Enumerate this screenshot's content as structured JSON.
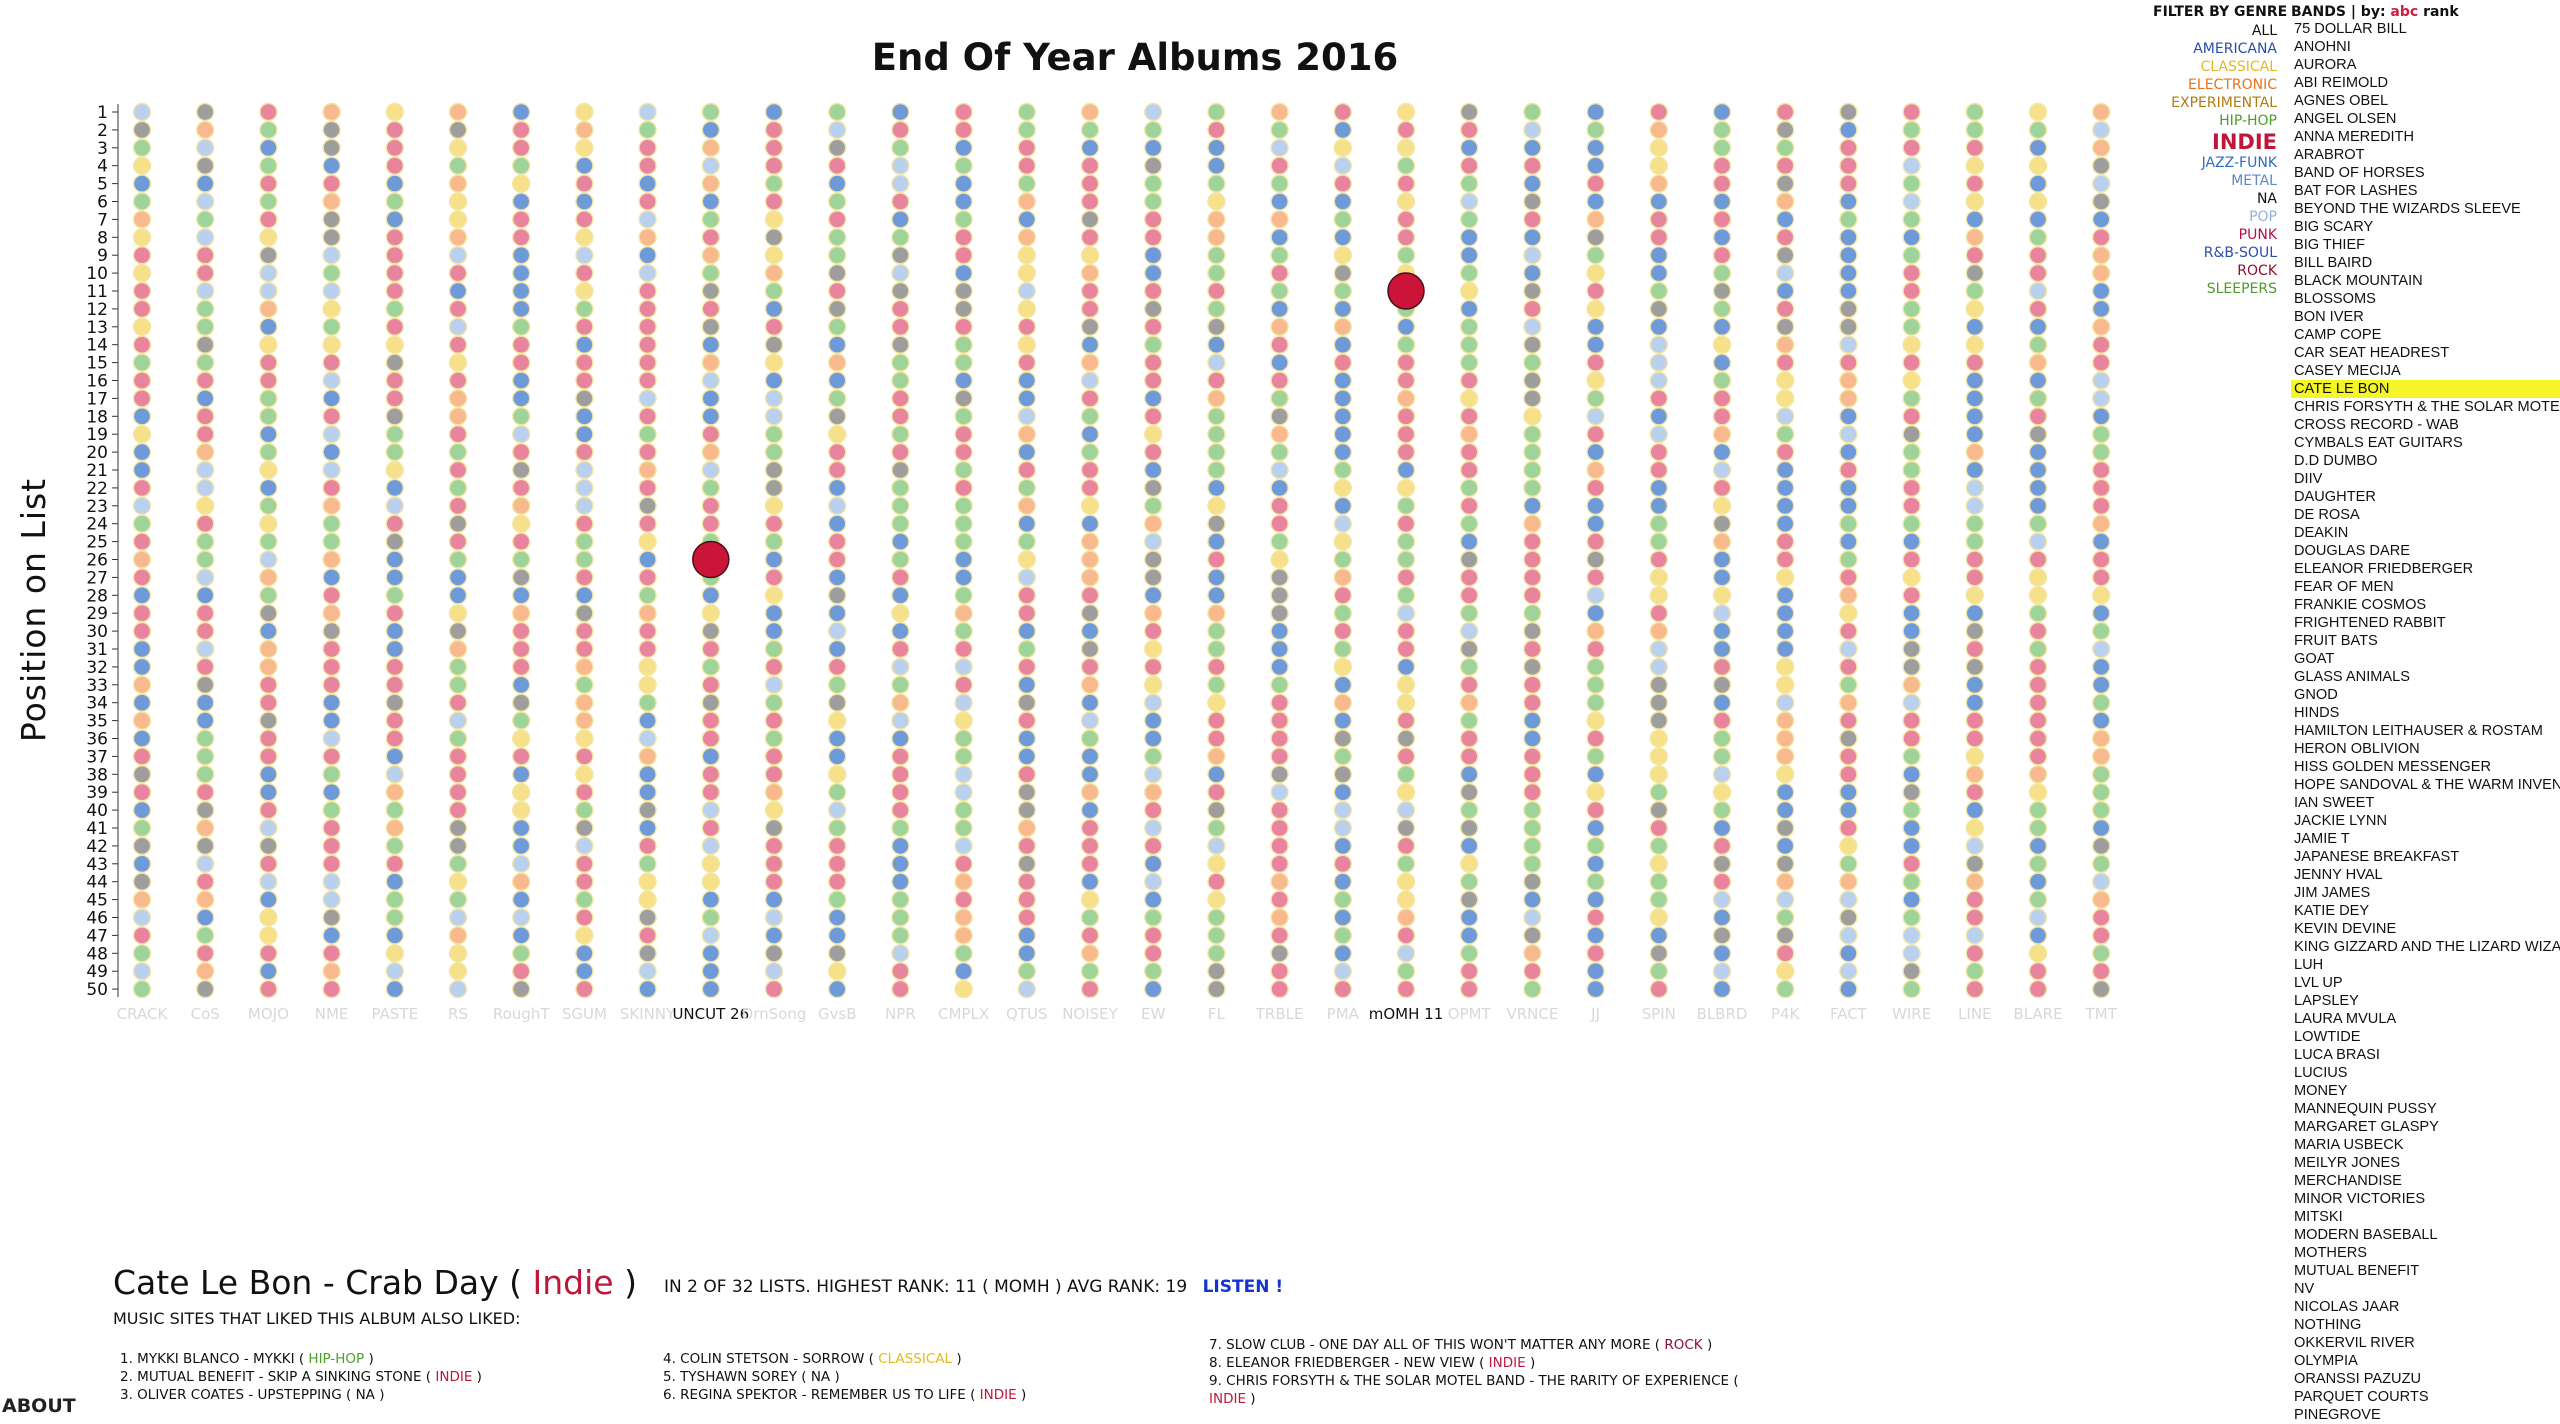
{
  "title": "End Of Year Albums 2016",
  "y_axis_label": "Position on List",
  "colors": {
    "indie": "#e8849e",
    "rock": "#9e9e9e",
    "hip_hop": "#9ed49a",
    "pop": "#b9d0ee",
    "electronic": "#f8b98e",
    "rnb": "#6f9ad9",
    "classical": "#f6e08a",
    "highlight": "#cc1438"
  },
  "publications": [
    "CRACK",
    "CoS",
    "MOJO",
    "NME",
    "PASTE",
    "RS",
    "RoughT",
    "SGUM",
    "SKINNY",
    "UNCUT",
    "DrnSong",
    "GvsB",
    "NPR",
    "CMPLX",
    "QTUS",
    "NOISEY",
    "EW",
    "FL",
    "TRBLE",
    "PMA",
    "MOMH",
    "OPMT",
    "VRNCE",
    "JJ",
    "SPIN",
    "BLBRD",
    "P4K",
    "FACT",
    "WIRE",
    "LINE",
    "BLARE",
    "TMT"
  ],
  "highlighted_labels": [
    "UNCUT 26",
    "mOMH 11"
  ],
  "positions": [
    "1",
    "2",
    "3",
    "4",
    "5",
    "6",
    "7",
    "8",
    "9",
    "10",
    "11",
    "12",
    "13",
    "14",
    "15",
    "16",
    "17",
    "18",
    "19",
    "20",
    "21",
    "22",
    "23",
    "24",
    "25",
    "26",
    "27",
    "28",
    "29",
    "30",
    "31",
    "32",
    "33",
    "34",
    "35",
    "36",
    "37",
    "38",
    "39",
    "40",
    "41",
    "42",
    "43",
    "44",
    "45",
    "46",
    "47",
    "48",
    "49",
    "50"
  ],
  "selected_album_ranks": [
    {
      "publication": "UNCUT",
      "rank": 26
    },
    {
      "publication": "MOMH",
      "rank": 11
    }
  ],
  "filter": {
    "heading": "FILTER BY GENRE",
    "genres": [
      {
        "label": "ALL",
        "color": "#111111",
        "active": false
      },
      {
        "label": "AMERICANA",
        "color": "#2a4fa8",
        "active": false
      },
      {
        "label": "CLASSICAL",
        "color": "#e6b91e",
        "active": false
      },
      {
        "label": "ELECTRONIC",
        "color": "#e8731e",
        "active": false
      },
      {
        "label": "EXPERIMENTAL",
        "color": "#b07c12",
        "active": false
      },
      {
        "label": "HIP-HOP",
        "color": "#4e9c2a",
        "active": false
      },
      {
        "label": "INDIE",
        "color": "#c0163a",
        "active": true
      },
      {
        "label": "JAZZ-FUNK",
        "color": "#2f6cc0",
        "active": false
      },
      {
        "label": "METAL",
        "color": "#5f87c9",
        "active": false
      },
      {
        "label": "NA",
        "color": "#111111",
        "active": false
      },
      {
        "label": "POP",
        "color": "#8fb0de",
        "active": false
      },
      {
        "label": "PUNK",
        "color": "#b51045",
        "active": false
      },
      {
        "label": "R&B-SOUL",
        "color": "#2a4fa8",
        "active": false
      },
      {
        "label": "ROCK",
        "color": "#8e1030",
        "active": false
      },
      {
        "label": "SLEEPERS",
        "color": "#4e9c2a",
        "active": false
      }
    ]
  },
  "bands_heading": {
    "label": "BANDS",
    "by": "| by:",
    "abc": "abc",
    "rank": "rank"
  },
  "bands": [
    "75 DOLLAR BILL",
    "ANOHNI",
    "AURORA",
    "ABI REIMOLD",
    "AGNES OBEL",
    "ANGEL OLSEN",
    "ANNA MEREDITH",
    "ARABROT",
    "BAND OF HORSES",
    "BAT FOR LASHES",
    "BEYOND THE WIZARDS SLEEVE",
    "BIG SCARY",
    "BIG THIEF",
    "BILL BAIRD",
    "BLACK MOUNTAIN",
    "BLOSSOMS",
    "BON IVER",
    "CAMP COPE",
    "CAR SEAT HEADREST",
    "CASEY MECIJA",
    "CATE LE BON",
    "CHRIS FORSYTH & THE SOLAR MOTEL BAND",
    "CROSS RECORD - WAB",
    "CYMBALS EAT GUITARS",
    "D.D DUMBO",
    "DIIV",
    "DAUGHTER",
    "DE ROSA",
    "DEAKIN",
    "DOUGLAS DARE",
    "ELEANOR FRIEDBERGER",
    "FEAR OF MEN",
    "FRANKIE COSMOS",
    "FRIGHTENED RABBIT",
    "FRUIT BATS",
    "GOAT",
    "GLASS ANIMALS",
    "GNOD",
    "HINDS",
    "HAMILTON LEITHAUSER & ROSTAM",
    "HERON OBLIVION",
    "HISS GOLDEN MESSENGER",
    "HOPE SANDOVAL & THE WARM INVENTIONS",
    "IAN SWEET",
    "JACKIE LYNN",
    "JAMIE T",
    "JAPANESE BREAKFAST",
    "JENNY HVAL",
    "JIM JAMES",
    "KATIE DEY",
    "KEVIN DEVINE",
    "KING GIZZARD AND THE LIZARD WIZARD",
    "LUH",
    "LVL UP",
    "LAPSLEY",
    "LAURA MVULA",
    "LOWTIDE",
    "LUCA BRASI",
    "LUCIUS",
    "MONEY",
    "MANNEQUIN PUSSY",
    "MARGARET GLASPY",
    "MARIA USBECK",
    "MEILYR JONES",
    "MERCHANDISE",
    "MINOR VICTORIES",
    "MITSKI",
    "MODERN BASEBALL",
    "MOTHERS",
    "MUTUAL BENEFIT",
    "NV",
    "NICOLAS JAAR",
    "NOTHING",
    "OKKERVIL RIVER",
    "OLYMPIA",
    "ORANSSI PAZUZU",
    "PARQUET COURTS",
    "PINEGROVE"
  ],
  "selected_band": "CATE LE BON",
  "album": {
    "artist_title": "Cate Le Bon - Crab Day",
    "open_paren": " ( ",
    "genre": "Indie",
    "close_paren": " )",
    "stats": "IN 2 OF 32 LISTS.  HIGHEST RANK: 11 ( MOMH )  AVG RANK: 19",
    "listen": "LISTEN !",
    "also_liked": "MUSIC SITES THAT LIKED THIS ALBUM ALSO LIKED:"
  },
  "recommendations": [
    {
      "text": "1. MYKKI BLANCO - MYKKI ( ",
      "genre": "HIP-HOP",
      "color": "#4e9c2a",
      "after": " )"
    },
    {
      "text": "2. MUTUAL BENEFIT - SKIP A SINKING STONE ( ",
      "genre": "INDIE",
      "color": "#c0163a",
      "after": " )"
    },
    {
      "text": "3. OLIVER COATES - UPSTEPPING ( NA )",
      "genre": "",
      "color": "#111111",
      "after": ""
    },
    {
      "text": "4. COLIN STETSON - SORROW ( ",
      "genre": "CLASSICAL",
      "color": "#e6b91e",
      "after": " )"
    },
    {
      "text": "5. TYSHAWN SOREY ( NA )",
      "genre": "",
      "color": "#111111",
      "after": ""
    },
    {
      "text": "6. REGINA SPEKTOR - REMEMBER US TO LIFE ( ",
      "genre": "INDIE",
      "color": "#c0163a",
      "after": " )"
    },
    {
      "text": "7. SLOW CLUB - ONE DAY ALL OF THIS WON'T MATTER ANY MORE ( ",
      "genre": "ROCK",
      "color": "#8e1030",
      "after": " )"
    },
    {
      "text": "8. ELEANOR FRIEDBERGER - NEW VIEW ( ",
      "genre": "INDIE",
      "color": "#c0163a",
      "after": " )"
    },
    {
      "text": "9. CHRIS FORSYTH & THE SOLAR MOTEL BAND - THE RARITY OF EXPERIENCE ( ",
      "genre": "INDIE",
      "color": "#c0163a",
      "after": " )"
    }
  ],
  "about": "ABOUT"
}
